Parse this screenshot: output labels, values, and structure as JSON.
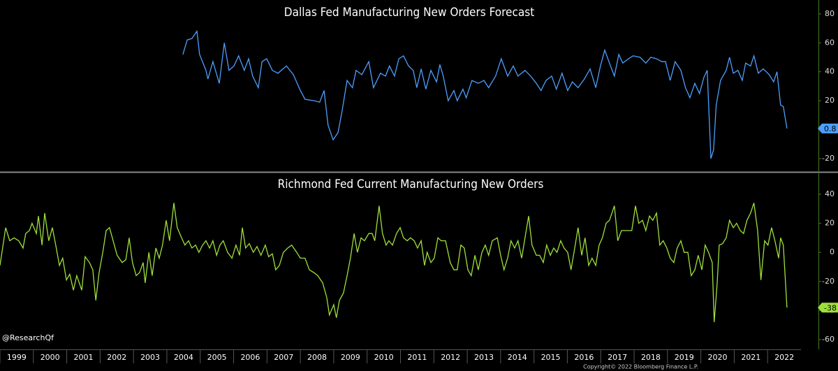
{
  "handle": "@ResearchQf",
  "copyright": "Copyright© 2022 Bloomberg Finance L.P.",
  "chart_data": [
    {
      "type": "line",
      "title": "Dallas Fed Manufacturing New Orders Forecast",
      "color": "#4d9fff",
      "xlim": [
        1999,
        2023
      ],
      "ylim": [
        -28.7,
        89.6
      ],
      "yticks": [
        -20,
        20,
        40,
        60,
        80
      ],
      "x": [
        2004.48,
        2004.61,
        2004.75,
        2004.9,
        2004.98,
        2005.17,
        2005.23,
        2005.38,
        2005.57,
        2005.72,
        2005.86,
        2006.01,
        2006.15,
        2006.32,
        2006.45,
        2006.57,
        2006.74,
        2006.85,
        2006.99,
        2007.16,
        2007.33,
        2007.58,
        2007.79,
        2008.0,
        2008.14,
        2008.41,
        2008.58,
        2008.71,
        2008.83,
        2008.98,
        2009.13,
        2009.25,
        2009.4,
        2009.56,
        2009.67,
        2009.84,
        2010.05,
        2010.19,
        2010.4,
        2010.55,
        2010.67,
        2010.82,
        2010.95,
        2011.09,
        2011.24,
        2011.38,
        2011.49,
        2011.62,
        2011.76,
        2011.91,
        2012.08,
        2012.18,
        2012.28,
        2012.43,
        2012.6,
        2012.7,
        2012.87,
        2012.97,
        2013.14,
        2013.33,
        2013.5,
        2013.64,
        2013.85,
        2014.02,
        2014.21,
        2014.38,
        2014.52,
        2014.73,
        2014.9,
        2015.07,
        2015.21,
        2015.36,
        2015.53,
        2015.67,
        2015.84,
        2016.01,
        2016.15,
        2016.32,
        2016.51,
        2016.68,
        2016.85,
        2016.99,
        2017.12,
        2017.26,
        2017.41,
        2017.54,
        2017.66,
        2017.83,
        2017.97,
        2018.18,
        2018.35,
        2018.5,
        2018.67,
        2018.83,
        2018.94,
        2019.08,
        2019.23,
        2019.4,
        2019.54,
        2019.67,
        2019.82,
        2019.96,
        2020.09,
        2020.19,
        2020.3,
        2020.38,
        2020.46,
        2020.59,
        2020.76,
        2020.86,
        2020.97,
        2021.11,
        2021.24,
        2021.34,
        2021.49,
        2021.59,
        2021.72,
        2021.87,
        2022.05,
        2022.18,
        2022.28,
        2022.39,
        2022.47,
        2022.58
      ],
      "values": [
        52,
        62,
        63,
        68,
        52,
        41,
        35,
        47,
        32,
        60,
        41,
        44,
        51,
        41,
        49,
        37,
        29,
        47,
        49,
        41,
        39,
        44,
        38,
        27,
        21,
        20,
        19,
        27,
        3,
        -7,
        -2,
        13,
        34,
        29,
        41,
        38,
        47,
        29,
        39,
        37,
        44,
        37,
        49,
        51,
        44,
        41,
        29,
        42,
        28,
        41,
        33,
        45,
        37,
        20,
        27,
        20,
        28,
        22,
        34,
        32,
        34,
        29,
        37,
        49,
        37,
        44,
        37,
        41,
        37,
        32,
        27,
        34,
        37,
        28,
        39,
        27,
        33,
        29,
        35,
        42,
        29,
        44,
        55,
        46,
        37,
        52,
        46,
        49,
        51,
        50,
        46,
        50,
        49,
        47,
        47,
        34,
        47,
        41,
        29,
        22,
        32,
        25,
        36,
        41,
        -20,
        -14,
        17,
        34,
        41,
        50,
        39,
        41,
        34,
        46,
        44,
        51,
        39,
        42,
        38,
        33,
        40,
        17,
        16,
        0.8
      ]
    },
    {
      "type": "line",
      "title": "Richmond Fed Current Manufacturing New Orders",
      "color": "#9ee03a",
      "xlim": [
        1999,
        2023
      ],
      "ylim": [
        -66.7,
        54.4
      ],
      "yticks": [
        -60,
        -40,
        -20,
        0,
        20,
        40
      ],
      "xticks": [
        1999,
        2000,
        2001,
        2002,
        2003,
        2004,
        2005,
        2006,
        2007,
        2008,
        2009,
        2010,
        2011,
        2012,
        2013,
        2014,
        2015,
        2016,
        2017,
        2018,
        2019,
        2020,
        2021,
        2022
      ],
      "x": [
        1999.0,
        1999.17,
        1999.29,
        1999.42,
        1999.56,
        1999.69,
        1999.77,
        1999.88,
        1999.96,
        2000.09,
        2000.15,
        2000.26,
        2000.34,
        2000.46,
        2000.57,
        2000.67,
        2000.78,
        2000.88,
        2000.99,
        2001.09,
        2001.2,
        2001.3,
        2001.45,
        2001.55,
        2001.68,
        2001.78,
        2001.87,
        2001.97,
        2002.08,
        2002.18,
        2002.28,
        2002.39,
        2002.51,
        2002.66,
        2002.77,
        2002.87,
        2002.97,
        2003.08,
        2003.18,
        2003.29,
        2003.35,
        2003.46,
        2003.56,
        2003.67,
        2003.77,
        2003.87,
        2003.98,
        2004.08,
        2004.21,
        2004.31,
        2004.44,
        2004.54,
        2004.65,
        2004.75,
        2004.86,
        2004.96,
        2005.07,
        2005.17,
        2005.28,
        2005.38,
        2005.49,
        2005.59,
        2005.69,
        2005.82,
        2005.95,
        2006.07,
        2006.18,
        2006.26,
        2006.36,
        2006.47,
        2006.59,
        2006.7,
        2006.82,
        2006.95,
        2007.05,
        2007.16,
        2007.26,
        2007.37,
        2007.49,
        2007.62,
        2007.74,
        2007.89,
        2008.0,
        2008.14,
        2008.27,
        2008.41,
        2008.52,
        2008.67,
        2008.79,
        2008.87,
        2009.0,
        2009.08,
        2009.17,
        2009.29,
        2009.4,
        2009.5,
        2009.61,
        2009.71,
        2009.82,
        2009.92,
        2010.05,
        2010.15,
        2010.23,
        2010.36,
        2010.46,
        2010.57,
        2010.65,
        2010.76,
        2010.88,
        2010.99,
        2011.09,
        2011.2,
        2011.3,
        2011.41,
        2011.51,
        2011.62,
        2011.72,
        2011.8,
        2011.91,
        2012.01,
        2012.12,
        2012.22,
        2012.35,
        2012.49,
        2012.6,
        2012.7,
        2012.81,
        2012.91,
        2013.02,
        2013.12,
        2013.23,
        2013.33,
        2013.44,
        2013.54,
        2013.64,
        2013.75,
        2013.9,
        2014.0,
        2014.1,
        2014.21,
        2014.31,
        2014.42,
        2014.52,
        2014.63,
        2014.73,
        2014.84,
        2014.94,
        2015.07,
        2015.17,
        2015.28,
        2015.38,
        2015.49,
        2015.59,
        2015.69,
        2015.8,
        2015.9,
        2016.01,
        2016.11,
        2016.22,
        2016.32,
        2016.43,
        2016.53,
        2016.64,
        2016.74,
        2016.85,
        2016.95,
        2017.05,
        2017.16,
        2017.26,
        2017.41,
        2017.51,
        2017.62,
        2017.77,
        2017.93,
        2018.04,
        2018.14,
        2018.25,
        2018.35,
        2018.46,
        2018.56,
        2018.67,
        2018.77,
        2018.87,
        2018.98,
        2019.08,
        2019.19,
        2019.29,
        2019.4,
        2019.5,
        2019.61,
        2019.71,
        2019.82,
        2019.92,
        2020.03,
        2020.13,
        2020.23,
        2020.34,
        2020.4,
        2020.49,
        2020.55,
        2020.65,
        2020.76,
        2020.86,
        2020.97,
        2021.07,
        2021.18,
        2021.28,
        2021.38,
        2021.49,
        2021.59,
        2021.7,
        2021.8,
        2021.91,
        2022.01,
        2022.12,
        2022.22,
        2022.33,
        2022.39,
        2022.47,
        2022.58
      ],
      "values": [
        -9,
        17,
        8,
        10,
        8,
        3,
        13,
        15,
        20,
        13,
        25,
        5,
        27,
        8,
        17,
        5,
        -9,
        -4,
        -19,
        -15,
        -26,
        -16,
        -26,
        -3,
        -7,
        -12,
        -33,
        -14,
        0,
        15,
        17,
        8,
        -2,
        -7,
        -5,
        10,
        -7,
        -16,
        -14,
        -7,
        -21,
        0,
        -16,
        3,
        -4,
        5,
        22,
        8,
        34,
        17,
        10,
        5,
        8,
        3,
        5,
        0,
        5,
        8,
        3,
        8,
        -2,
        5,
        8,
        0,
        -4,
        5,
        -2,
        17,
        3,
        6,
        0,
        4,
        -2,
        5,
        -3,
        -1,
        -12,
        -9,
        0,
        3,
        5,
        0,
        -4,
        -4,
        -12,
        -14,
        -16,
        -21,
        -31,
        -43,
        -36,
        -45,
        -33,
        -28,
        -16,
        -4,
        13,
        0,
        10,
        8,
        13,
        13,
        8,
        32,
        13,
        5,
        8,
        5,
        13,
        17,
        10,
        8,
        10,
        8,
        3,
        8,
        -9,
        0,
        -7,
        -4,
        10,
        8,
        8,
        -7,
        -12,
        -12,
        5,
        3,
        -12,
        -16,
        -2,
        -12,
        0,
        5,
        -2,
        8,
        10,
        -2,
        -12,
        -4,
        8,
        3,
        8,
        -4,
        10,
        25,
        5,
        -2,
        -2,
        -7,
        5,
        -2,
        3,
        0,
        8,
        3,
        0,
        -12,
        3,
        17,
        -2,
        10,
        -9,
        -4,
        -9,
        5,
        10,
        20,
        22,
        32,
        8,
        15,
        15,
        15,
        32,
        20,
        22,
        15,
        25,
        22,
        27,
        5,
        8,
        3,
        -4,
        -7,
        3,
        8,
        0,
        0,
        -16,
        -12,
        -2,
        -12,
        5,
        0,
        -7,
        -48,
        -21,
        5,
        6,
        10,
        22,
        17,
        20,
        15,
        13,
        22,
        27,
        34,
        15,
        -19,
        8,
        5,
        17,
        8,
        -4,
        10,
        5,
        -38
      ]
    }
  ]
}
